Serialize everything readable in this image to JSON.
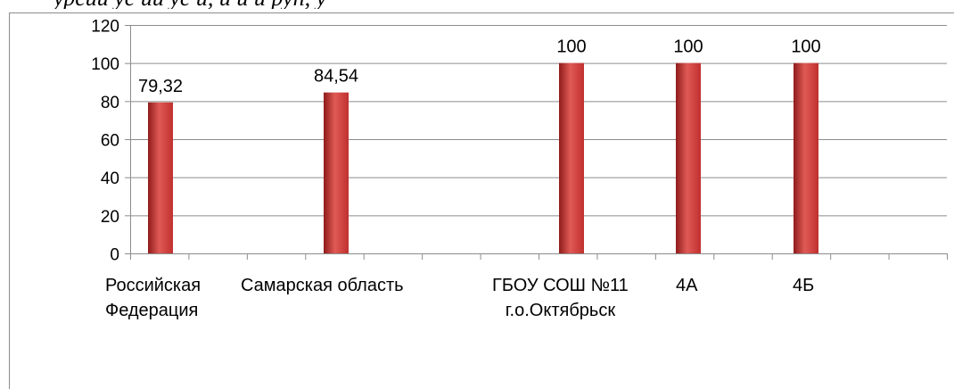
{
  "title_fragment": "урсии ус ии ус и, и и и руп, у",
  "chart_data": {
    "type": "bar",
    "categories": [
      "Российская\nФедерация",
      "Самарская область",
      "ГБОУ СОШ №11\nг.о.Октябрьск",
      "4А",
      "4Б"
    ],
    "values": [
      79.32,
      84.54,
      100,
      100,
      100
    ],
    "value_labels": [
      "79,32",
      "84,54",
      "100",
      "100",
      "100"
    ],
    "yticks": [
      "0",
      "20",
      "40",
      "60",
      "80",
      "100",
      "120"
    ],
    "ylim": [
      0,
      120
    ],
    "grid": true,
    "legend": "none",
    "colors": {
      "bar": "#c0302e",
      "bar_light": "#e05a55",
      "bar_dark": "#8e1c1b",
      "grid": "#8c8c8c",
      "axis": "#8c8c8c"
    }
  }
}
